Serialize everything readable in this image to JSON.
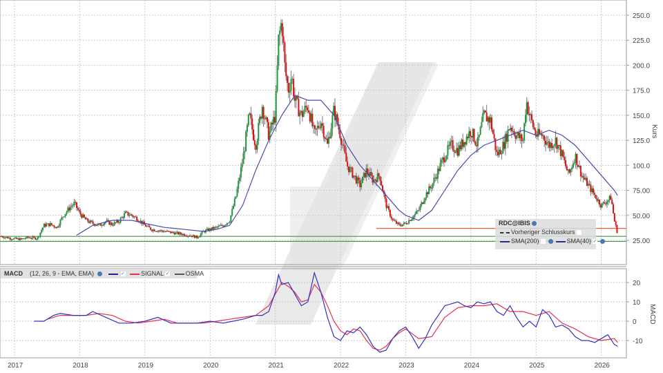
{
  "chart_data": [
    {
      "type": "candlestick",
      "panel": "price",
      "title": "RDC@IBIS",
      "ylabel": "Kurs",
      "ylim": [
        5,
        265
      ],
      "yticks": [
        "25.00",
        "50.00",
        "75.00",
        "100.0",
        "125.0",
        "150.0",
        "175.0",
        "200.0",
        "225.0",
        "250.0"
      ],
      "x_ticks": [
        "2017",
        "2018",
        "2019",
        "2020",
        "2021",
        "2022",
        "2023",
        "2024",
        "2025",
        "2026"
      ],
      "grid": true,
      "legend": {
        "title": "RDC@IBIS",
        "entries": [
          "Vorheriger Schlusskurs",
          "SMA(200)",
          "SMA(40)"
        ]
      },
      "horizontal_lines": [
        {
          "name": "Vorheriger Schlusskurs",
          "value": 37,
          "color": "#e8603a",
          "x_start": 2022.55
        },
        {
          "name": "support-upper",
          "value": 29,
          "color": "#3a9a3a"
        },
        {
          "name": "support-lower",
          "value": 24,
          "color": "#3a9a3a"
        }
      ],
      "series": [
        {
          "name": "Close",
          "x": [
            2016.8,
            2016.95,
            2017.1,
            2017.2,
            2017.35,
            2017.45,
            2017.55,
            2017.65,
            2017.75,
            2017.85,
            2017.92,
            2018.0,
            2018.1,
            2018.2,
            2018.3,
            2018.4,
            2018.5,
            2018.6,
            2018.7,
            2018.8,
            2018.9,
            2019.0,
            2019.1,
            2019.2,
            2019.3,
            2019.4,
            2019.5,
            2019.6,
            2019.7,
            2019.8,
            2019.9,
            2020.0,
            2020.1,
            2020.2,
            2020.3,
            2020.4,
            2020.5,
            2020.6,
            2020.7,
            2020.8,
            2020.9,
            2021.0,
            2021.05,
            2021.1,
            2021.15,
            2021.2,
            2021.25,
            2021.3,
            2021.4,
            2021.5,
            2021.6,
            2021.7,
            2021.8,
            2021.9,
            2022.0,
            2022.1,
            2022.2,
            2022.3,
            2022.4,
            2022.5,
            2022.6,
            2022.7,
            2022.8,
            2022.9,
            2023.0,
            2023.1,
            2023.2,
            2023.3,
            2023.4,
            2023.5,
            2023.6,
            2023.7,
            2023.8,
            2023.9,
            2024.0,
            2024.1,
            2024.2,
            2024.3,
            2024.4,
            2024.5,
            2024.6,
            2024.7,
            2024.8,
            2024.85,
            2024.9,
            2025.0,
            2025.1,
            2025.2,
            2025.3,
            2025.4,
            2025.5,
            2025.6,
            2025.7,
            2025.8,
            2025.9,
            2026.0,
            2026.1,
            2026.15,
            2026.2,
            2026.25
          ],
          "values": [
            29,
            27,
            26,
            28,
            27,
            40,
            41,
            38,
            50,
            58,
            62,
            52,
            45,
            42,
            40,
            44,
            41,
            44,
            52,
            50,
            46,
            40,
            36,
            35,
            34,
            33,
            32,
            31,
            30,
            28,
            34,
            36,
            38,
            40,
            45,
            70,
            105,
            150,
            120,
            160,
            130,
            150,
            225,
            245,
            195,
            175,
            190,
            165,
            150,
            160,
            130,
            145,
            120,
            155,
            130,
            100,
            90,
            80,
            95,
            85,
            90,
            60,
            45,
            40,
            42,
            48,
            55,
            70,
            80,
            95,
            110,
            120,
            115,
            125,
            135,
            120,
            150,
            145,
            110,
            120,
            140,
            130,
            125,
            165,
            150,
            130,
            130,
            120,
            125,
            110,
            90,
            110,
            90,
            80,
            70,
            60,
            65,
            68,
            45,
            32
          ],
          "color_up": "#1a9a3a",
          "color_down": "#e01010"
        },
        {
          "name": "SMA(40)",
          "color": "#4a4aaa",
          "x": [
            2017.95,
            2018.2,
            2018.5,
            2018.8,
            2019.0,
            2019.3,
            2019.6,
            2019.9,
            2020.1,
            2020.3,
            2020.5,
            2020.7,
            2020.9,
            2021.1,
            2021.3,
            2021.5,
            2021.7,
            2021.9,
            2022.1,
            2022.3,
            2022.5,
            2022.7,
            2022.9,
            2023.0,
            2023.2,
            2023.4,
            2023.6,
            2023.8,
            2024.0,
            2024.2,
            2024.4,
            2024.6,
            2024.8,
            2025.0,
            2025.2,
            2025.4,
            2025.6,
            2025.8,
            2026.0,
            2026.2,
            2026.25
          ],
          "values": [
            30,
            40,
            45,
            45,
            42,
            38,
            36,
            34,
            36,
            40,
            60,
            95,
            125,
            150,
            170,
            165,
            165,
            150,
            120,
            100,
            85,
            70,
            55,
            50,
            45,
            55,
            75,
            95,
            110,
            120,
            125,
            130,
            135,
            130,
            135,
            130,
            120,
            105,
            90,
            75,
            70
          ]
        },
        {
          "name": "SMA(200)",
          "color": "#4a4aaa",
          "x": [],
          "values": []
        }
      ]
    },
    {
      "type": "line",
      "panel": "macd",
      "title": "MACD (12, 26, 9 - EMA, EMA)",
      "ylabel": "MACD",
      "ylim": [
        -19,
        27
      ],
      "yticks": [
        "-10",
        "0",
        "10",
        "20"
      ],
      "grid": true,
      "legend": {
        "entries": [
          "MACD",
          "SIGNAL",
          "OSMA"
        ]
      },
      "series": [
        {
          "name": "MACD",
          "color": "#3030c0",
          "x": [
            2017.3,
            2017.45,
            2017.6,
            2017.7,
            2017.9,
            2018.1,
            2018.2,
            2018.4,
            2018.6,
            2018.8,
            2019.0,
            2019.2,
            2019.4,
            2019.6,
            2019.8,
            2020.0,
            2020.2,
            2020.35,
            2020.5,
            2020.6,
            2020.7,
            2020.8,
            2020.9,
            2021.0,
            2021.05,
            2021.1,
            2021.2,
            2021.3,
            2021.4,
            2021.5,
            2021.6,
            2021.7,
            2021.8,
            2021.9,
            2022.0,
            2022.1,
            2022.2,
            2022.3,
            2022.4,
            2022.5,
            2022.6,
            2022.7,
            2022.8,
            2022.9,
            2023.0,
            2023.1,
            2023.2,
            2023.3,
            2023.4,
            2023.5,
            2023.6,
            2023.7,
            2023.8,
            2023.9,
            2024.0,
            2024.1,
            2024.2,
            2024.3,
            2024.4,
            2024.5,
            2024.6,
            2024.7,
            2024.8,
            2024.9,
            2025.0,
            2025.1,
            2025.2,
            2025.3,
            2025.4,
            2025.5,
            2025.6,
            2025.7,
            2025.8,
            2025.9,
            2026.0,
            2026.1,
            2026.2,
            2026.25
          ],
          "values": [
            0,
            0,
            3,
            4,
            3,
            3,
            5,
            2,
            -1,
            -1,
            0,
            2,
            -1,
            -1,
            -1,
            0,
            -1,
            0,
            1,
            2,
            3,
            3,
            5,
            15,
            24,
            19,
            20,
            14,
            8,
            10,
            25,
            15,
            2,
            -8,
            -10,
            -5,
            -6,
            -3,
            -7,
            -13,
            -16,
            -15,
            -9,
            -5,
            -3,
            -8,
            -14,
            -9,
            -2,
            3,
            8,
            9,
            10,
            8,
            7,
            10,
            9,
            10,
            5,
            3,
            8,
            2,
            -3,
            0,
            -3,
            6,
            3,
            -3,
            -2,
            -4,
            -8,
            -10,
            -10,
            -11,
            -9,
            -7,
            -12,
            -13
          ]
        },
        {
          "name": "SIGNAL",
          "color": "#e83050",
          "x": [
            2017.5,
            2017.7,
            2017.9,
            2018.1,
            2018.3,
            2018.5,
            2018.7,
            2018.9,
            2019.1,
            2019.3,
            2019.5,
            2019.7,
            2019.9,
            2020.1,
            2020.3,
            2020.5,
            2020.7,
            2020.9,
            2021.0,
            2021.1,
            2021.2,
            2021.3,
            2021.4,
            2021.5,
            2021.6,
            2021.7,
            2021.8,
            2021.9,
            2022.0,
            2022.1,
            2022.2,
            2022.3,
            2022.4,
            2022.5,
            2022.6,
            2022.7,
            2022.8,
            2022.9,
            2023.0,
            2023.2,
            2023.4,
            2023.6,
            2023.8,
            2024.0,
            2024.2,
            2024.4,
            2024.6,
            2024.8,
            2025.0,
            2025.2,
            2025.4,
            2025.6,
            2025.8,
            2026.0,
            2026.2,
            2026.25
          ],
          "values": [
            1,
            3,
            3,
            3,
            4,
            3,
            0,
            -1,
            0,
            1,
            -1,
            -1,
            -1,
            0,
            1,
            2,
            3,
            8,
            14,
            20,
            18,
            15,
            10,
            11,
            19,
            15,
            8,
            0,
            -5,
            -7,
            -4,
            -5,
            -10,
            -14,
            -15,
            -13,
            -9,
            -6,
            -4,
            -9,
            -8,
            2,
            7,
            8,
            8,
            9,
            5,
            5,
            3,
            5,
            -1,
            -4,
            -8,
            -10,
            -9,
            -11
          ]
        },
        {
          "name": "OSMA",
          "color": "#555555",
          "x": [],
          "values": []
        }
      ]
    }
  ],
  "price_legend": {
    "title": "RDC@IBIS",
    "prev_close": "Vorheriger Schlusskurs",
    "sma200": "SMA(200)",
    "sma40": "SMA(40)"
  },
  "macd_legend": {
    "name": "MACD",
    "params": "(12, 26, 9 - EMA, EMA)",
    "signal": "SIGNAL",
    "osma": "OSMA"
  },
  "axes": {
    "price_label": "Kurs",
    "macd_label": "MACD",
    "colors": {
      "grid": "#c8c8c8",
      "axis": "#999999",
      "watermark": "#e4e4e4",
      "legend_bg": "#d8d8d8"
    }
  }
}
